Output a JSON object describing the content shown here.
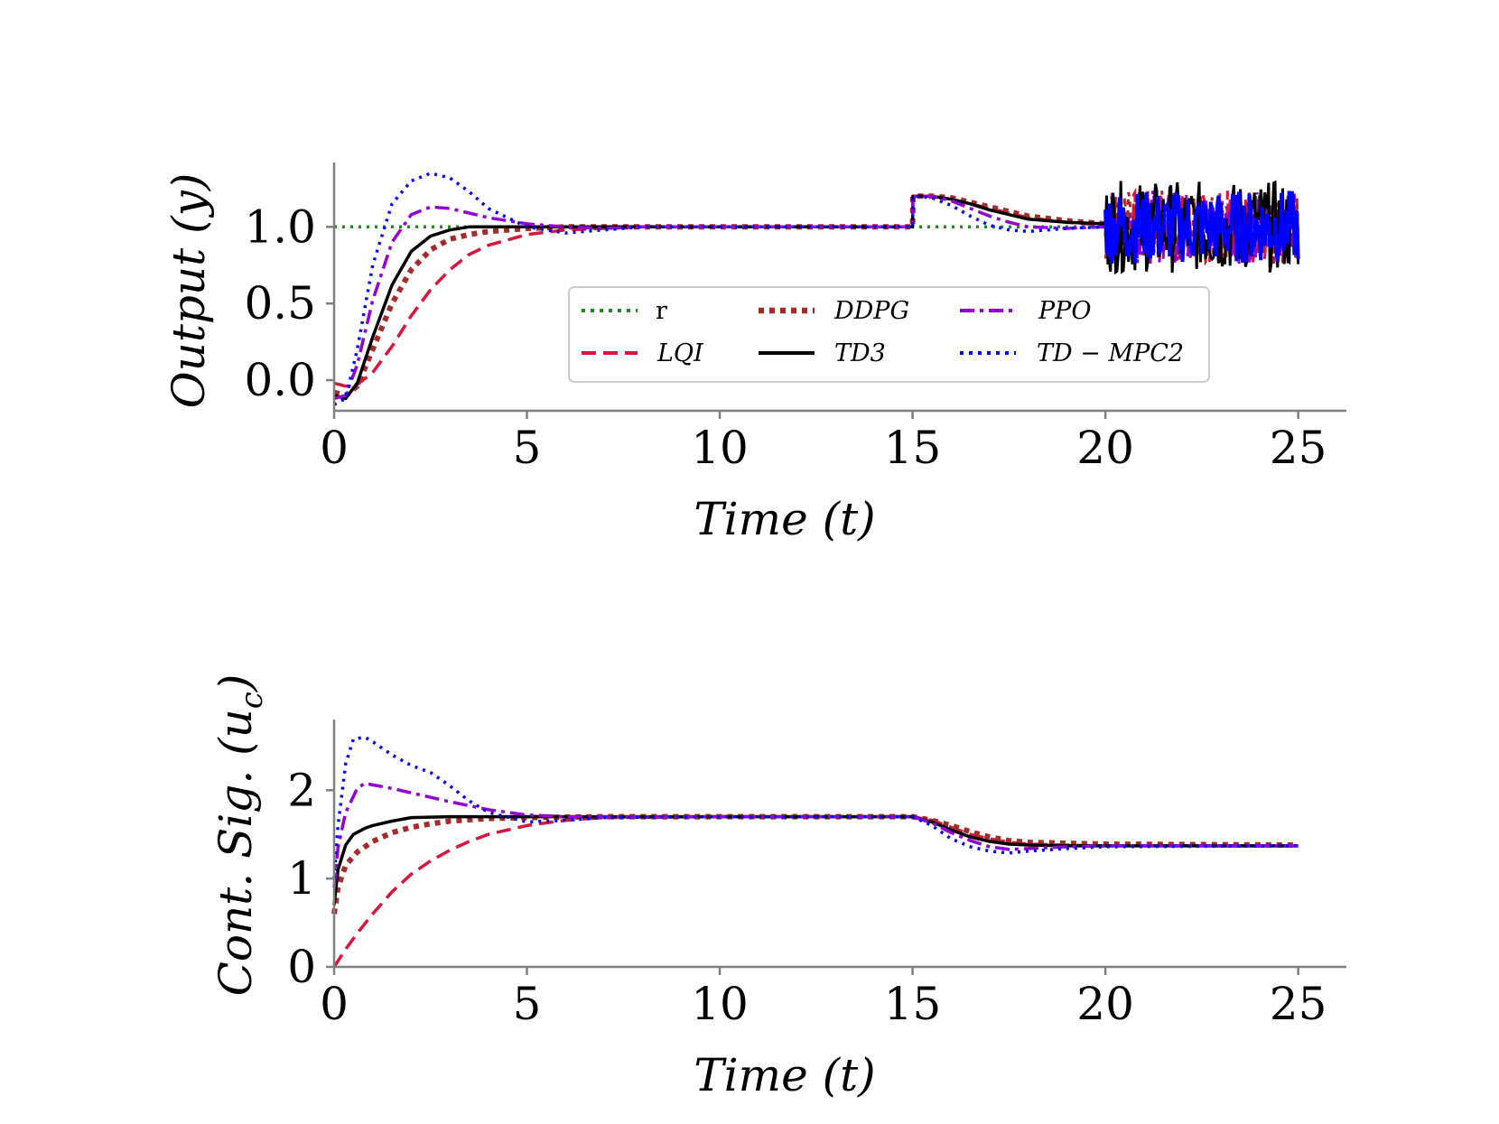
{
  "figure": {
    "colors": {
      "r": "#228B22",
      "LQI": "#DC143C",
      "DDPG": "#A52A2A",
      "TD3": "#000000",
      "PPO": "#9400D3",
      "TD-MPC2": "#0000FF",
      "axis": "#808080"
    }
  },
  "chart_data": [
    {
      "type": "line",
      "title": "",
      "xlabel": "Time (t)",
      "ylabel": "Output (y)",
      "xlim": [
        0,
        26.25
      ],
      "ylim": [
        -0.2,
        1.42
      ],
      "xticks": [
        0,
        5,
        10,
        15,
        20,
        25
      ],
      "xtick_labels": [
        "0",
        "5",
        "10",
        "15",
        "20",
        "25"
      ],
      "yticks": [
        0.0,
        0.5,
        1.0
      ],
      "ytick_labels": [
        "0.0",
        "0.5",
        "1.0"
      ],
      "grid": false,
      "legend": {
        "placement": "lower-center",
        "entries": [
          {
            "name": "r",
            "style": "dotted",
            "color": "#228B22"
          },
          {
            "name": "DDPG",
            "style": "dotted-thick",
            "color": "#A52A2A"
          },
          {
            "name": "PPO",
            "style": "dashdot",
            "color": "#9400D3"
          },
          {
            "name": "LQI",
            "style": "dashed",
            "color": "#DC143C"
          },
          {
            "name": "TD3",
            "style": "solid",
            "color": "#000000"
          },
          {
            "name": "TD − MPC2",
            "style": "dotted",
            "color": "#0000FF"
          }
        ]
      },
      "annotations": [
        "Oscillatory / noisy outputs for all controllers between t=20 and t=25 (approx. 0.7–1.3)",
        "Disturbance step at t=15 raising output to about 1.2"
      ],
      "series": [
        {
          "name": "r",
          "x": [
            0,
            25
          ],
          "y": [
            1.0,
            1.0
          ]
        },
        {
          "name": "LQI",
          "x": [
            0,
            0.3,
            0.6,
            1.0,
            1.5,
            2.0,
            2.5,
            3.0,
            3.5,
            4.0,
            5.0,
            6.0,
            7.0,
            8.0,
            10.0,
            15.0,
            15.01,
            15.5,
            16.0,
            16.5,
            17.0,
            17.5,
            18.0,
            19.0,
            20.0
          ],
          "y": [
            -0.02,
            -0.04,
            -0.03,
            0.05,
            0.22,
            0.42,
            0.59,
            0.72,
            0.82,
            0.88,
            0.95,
            0.98,
            0.99,
            1.0,
            1.0,
            1.0,
            1.2,
            1.2,
            1.18,
            1.15,
            1.12,
            1.09,
            1.06,
            1.03,
            1.01
          ]
        },
        {
          "name": "DDPG",
          "x": [
            0,
            0.3,
            0.6,
            1.0,
            1.5,
            2.0,
            2.5,
            3.0,
            3.5,
            4.0,
            5.0,
            6.0,
            7.0,
            8.0,
            10.0,
            15.0,
            15.01,
            15.5,
            16.0,
            16.5,
            17.0,
            17.5,
            18.0,
            19.0,
            20.0
          ],
          "y": [
            -0.08,
            -0.1,
            -0.04,
            0.2,
            0.5,
            0.72,
            0.85,
            0.92,
            0.95,
            0.97,
            0.99,
            1.0,
            1.0,
            1.0,
            1.0,
            1.0,
            1.2,
            1.2,
            1.19,
            1.16,
            1.13,
            1.1,
            1.07,
            1.04,
            1.02
          ]
        },
        {
          "name": "TD3",
          "x": [
            0,
            0.3,
            0.6,
            1.0,
            1.5,
            2.0,
            2.5,
            3.0,
            3.5,
            4.0,
            5.0,
            6.0,
            7.0,
            8.0,
            10.0,
            15.0,
            15.01,
            15.5,
            16.0,
            16.5,
            17.0,
            17.5,
            18.0,
            19.0,
            20.0
          ],
          "y": [
            -0.1,
            -0.12,
            -0.02,
            0.28,
            0.62,
            0.84,
            0.94,
            0.98,
            1.0,
            1.0,
            1.0,
            1.0,
            1.0,
            1.0,
            1.0,
            1.0,
            1.2,
            1.2,
            1.18,
            1.15,
            1.11,
            1.08,
            1.05,
            1.03,
            1.02
          ]
        },
        {
          "name": "PPO",
          "x": [
            0,
            0.3,
            0.6,
            1.0,
            1.5,
            2.0,
            2.5,
            3.0,
            3.5,
            4.0,
            5.0,
            6.0,
            7.0,
            8.0,
            10.0,
            15.0,
            15.01,
            15.5,
            16.0,
            16.5,
            17.0,
            17.5,
            18.0,
            19.0,
            20.0
          ],
          "y": [
            -0.12,
            -0.1,
            0.1,
            0.52,
            0.9,
            1.08,
            1.13,
            1.12,
            1.09,
            1.06,
            1.02,
            1.0,
            0.99,
            1.0,
            1.0,
            1.0,
            1.2,
            1.2,
            1.17,
            1.12,
            1.07,
            1.03,
            1.0,
            0.99,
            1.0
          ]
        },
        {
          "name": "TD-MPC2",
          "x": [
            0,
            0.3,
            0.6,
            1.0,
            1.5,
            2.0,
            2.5,
            3.0,
            3.5,
            4.0,
            5.0,
            6.0,
            7.0,
            8.0,
            10.0,
            15.0,
            15.01,
            15.5,
            16.0,
            16.5,
            17.0,
            17.5,
            18.0,
            19.0,
            20.0
          ],
          "y": [
            -0.16,
            -0.12,
            0.2,
            0.75,
            1.15,
            1.3,
            1.35,
            1.32,
            1.23,
            1.12,
            1.0,
            0.96,
            0.98,
            1.0,
            1.0,
            1.0,
            1.2,
            1.19,
            1.14,
            1.07,
            1.01,
            0.98,
            0.97,
            0.99,
            1.0
          ]
        }
      ]
    },
    {
      "type": "line",
      "title": "",
      "xlabel": "Time (t)",
      "ylabel": "Cont. Sig. (u_c)",
      "ylabel_main": "Cont. Sig. (u",
      "ylabel_sub": "c",
      "ylabel_close": ")",
      "xlim": [
        0,
        26.25
      ],
      "ylim": [
        0,
        2.8
      ],
      "xticks": [
        0,
        5,
        10,
        15,
        20,
        25
      ],
      "xtick_labels": [
        "0",
        "5",
        "10",
        "15",
        "20",
        "25"
      ],
      "yticks": [
        0,
        1,
        2
      ],
      "ytick_labels": [
        "0",
        "1",
        "2"
      ],
      "grid": false,
      "series": [
        {
          "name": "LQI",
          "x": [
            0,
            0.3,
            0.6,
            1.0,
            1.5,
            2.0,
            2.5,
            3.0,
            3.5,
            4.0,
            5.0,
            6.0,
            7.0,
            10.0,
            15.0,
            15.5,
            16.0,
            16.5,
            17.0,
            17.5,
            18.0,
            19.0,
            20.0,
            25.0
          ],
          "y": [
            0.0,
            0.2,
            0.38,
            0.6,
            0.85,
            1.05,
            1.2,
            1.32,
            1.42,
            1.5,
            1.6,
            1.66,
            1.69,
            1.7,
            1.7,
            1.66,
            1.58,
            1.5,
            1.45,
            1.41,
            1.39,
            1.38,
            1.37,
            1.37
          ]
        },
        {
          "name": "DDPG",
          "x": [
            0,
            0.1,
            0.3,
            0.6,
            1.0,
            1.5,
            2.0,
            2.5,
            3.0,
            4.0,
            5.0,
            7.0,
            10.0,
            15.0,
            15.5,
            16.0,
            16.5,
            17.0,
            17.5,
            18.0,
            19.0,
            20.0,
            25.0
          ],
          "y": [
            0.6,
            0.9,
            1.15,
            1.3,
            1.42,
            1.52,
            1.58,
            1.62,
            1.65,
            1.68,
            1.69,
            1.7,
            1.7,
            1.7,
            1.66,
            1.6,
            1.53,
            1.47,
            1.43,
            1.41,
            1.4,
            1.39,
            1.38
          ]
        },
        {
          "name": "TD3",
          "x": [
            0,
            0.1,
            0.3,
            0.5,
            0.8,
            1.0,
            1.5,
            2.0,
            3.0,
            4.0,
            5.0,
            7.0,
            10.0,
            15.0,
            15.5,
            16.0,
            16.5,
            17.0,
            17.5,
            18.0,
            19.0,
            20.0,
            25.0
          ],
          "y": [
            0.7,
            1.1,
            1.38,
            1.5,
            1.57,
            1.6,
            1.65,
            1.69,
            1.7,
            1.7,
            1.7,
            1.7,
            1.7,
            1.7,
            1.64,
            1.55,
            1.47,
            1.42,
            1.39,
            1.38,
            1.37,
            1.37,
            1.37
          ]
        },
        {
          "name": "PPO",
          "x": [
            0,
            0.1,
            0.3,
            0.6,
            0.8,
            1.0,
            1.5,
            2.0,
            3.0,
            4.0,
            5.0,
            6.0,
            7.0,
            10.0,
            15.0,
            15.5,
            16.0,
            16.5,
            17.0,
            17.5,
            18.0,
            19.0,
            20.0,
            25.0
          ],
          "y": [
            0.9,
            1.35,
            1.75,
            2.02,
            2.08,
            2.06,
            2.02,
            1.97,
            1.87,
            1.78,
            1.72,
            1.7,
            1.7,
            1.7,
            1.7,
            1.63,
            1.52,
            1.43,
            1.36,
            1.33,
            1.34,
            1.36,
            1.37,
            1.37
          ]
        },
        {
          "name": "TD-MPC2",
          "x": [
            0,
            0.1,
            0.3,
            0.5,
            0.8,
            1.0,
            1.5,
            2.0,
            2.5,
            3.0,
            3.5,
            4.0,
            5.0,
            6.0,
            7.0,
            10.0,
            15.0,
            15.5,
            16.0,
            16.5,
            17.0,
            17.5,
            18.0,
            19.0,
            20.0,
            25.0
          ],
          "y": [
            1.0,
            1.6,
            2.3,
            2.58,
            2.6,
            2.55,
            2.4,
            2.28,
            2.2,
            2.05,
            1.88,
            1.75,
            1.64,
            1.66,
            1.69,
            1.7,
            1.7,
            1.6,
            1.45,
            1.36,
            1.31,
            1.29,
            1.31,
            1.34,
            1.36,
            1.37
          ]
        }
      ]
    }
  ]
}
